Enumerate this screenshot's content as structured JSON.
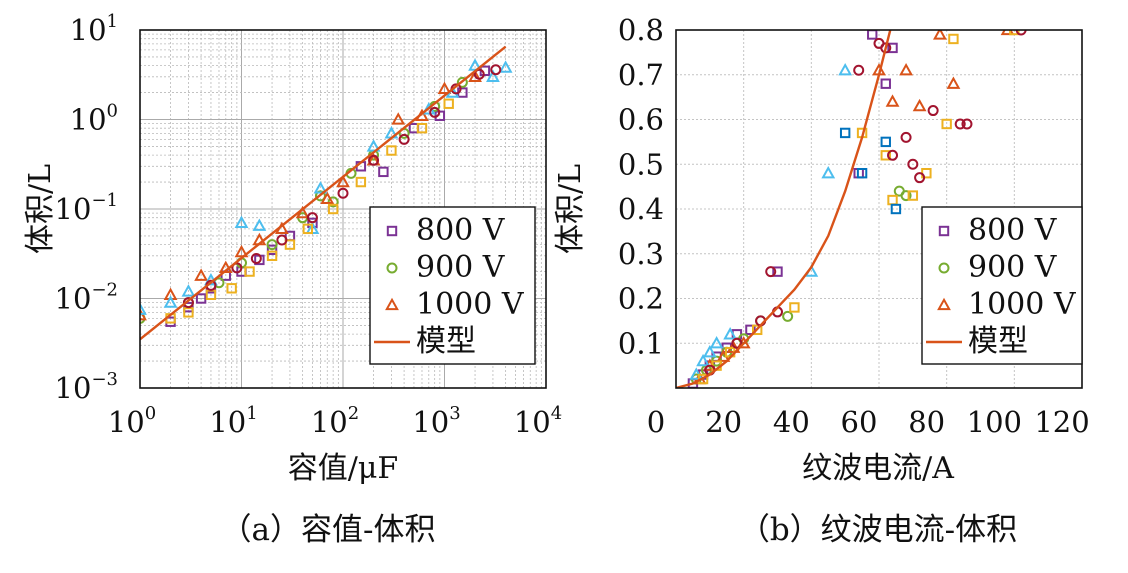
{
  "colors": {
    "s800": "#7b3294",
    "s900": "#77ac30",
    "s1000": "#d95319",
    "model": "#d95319",
    "other_blue": "#4dbeee",
    "other_yellow": "#edb120",
    "other_red": "#a2142f",
    "other_navy": "#0072bd"
  },
  "chart_data": [
    {
      "type": "scatter",
      "scale": "log-log",
      "caption": "（a）容值-体积",
      "xlabel": "容值/μF",
      "ylabel": "体积/L",
      "xlim": [
        1,
        10000
      ],
      "ylim": [
        0.001,
        10
      ],
      "xticks": [
        {
          "base": "10",
          "exp": "0"
        },
        {
          "base": "10",
          "exp": "1"
        },
        {
          "base": "10",
          "exp": "2"
        },
        {
          "base": "10",
          "exp": "3"
        },
        {
          "base": "10",
          "exp": "4"
        }
      ],
      "yticks": [
        {
          "base": "10",
          "exp": "1"
        },
        {
          "base": "10",
          "exp": "0"
        },
        {
          "base": "10",
          "exp": "−1"
        },
        {
          "base": "10",
          "exp": "−2"
        },
        {
          "base": "10",
          "exp": "−3"
        }
      ],
      "grid": true,
      "legend_position": "bottom-right",
      "legend": [
        {
          "label": "800 V",
          "marker": "square",
          "color_key": "s800"
        },
        {
          "label": "900 V",
          "marker": "circle",
          "color_key": "s900"
        },
        {
          "label": "1000 V",
          "marker": "triangle",
          "color_key": "s1000"
        },
        {
          "label": "模型",
          "marker": "line",
          "color_key": "model"
        }
      ],
      "model": {
        "x": [
          1,
          4000
        ],
        "y": [
          0.0035,
          6.5
        ]
      },
      "series": [
        {
          "legend_label": "800 V",
          "marker": "square",
          "color_key": "s800",
          "x": [
            2,
            3,
            4,
            5,
            7,
            10,
            15,
            20,
            30,
            50,
            150,
            250,
            500,
            900,
            1500,
            2500
          ],
          "y": [
            0.0055,
            0.008,
            0.01,
            0.013,
            0.018,
            0.02,
            0.027,
            0.035,
            0.05,
            0.07,
            0.3,
            0.26,
            0.8,
            1.1,
            2.0,
            3.5
          ]
        },
        {
          "legend_label": "900 V",
          "marker": "circle",
          "color_key": "s900",
          "x": [
            1,
            3,
            6,
            10,
            20,
            40,
            60,
            80,
            120,
            200,
            400,
            800,
            1500
          ],
          "y": [
            0.006,
            0.009,
            0.015,
            0.025,
            0.04,
            0.08,
            0.14,
            0.12,
            0.25,
            0.4,
            0.7,
            1.4,
            2.6
          ]
        },
        {
          "legend_label": "1000 V",
          "marker": "triangle",
          "color_key": "s1000",
          "x": [
            1,
            2,
            4,
            7,
            10,
            15,
            25,
            40,
            70,
            100,
            200,
            350,
            600,
            1000,
            2000
          ],
          "y": [
            0.0065,
            0.011,
            0.018,
            0.022,
            0.033,
            0.045,
            0.06,
            0.09,
            0.13,
            0.2,
            0.35,
            1.0,
            1.1,
            2.2,
            3.0
          ]
        },
        {
          "marker": "triangle",
          "color_key": "other_blue",
          "x": [
            1,
            2,
            3,
            5,
            10,
            15,
            50,
            60,
            200,
            300,
            700,
            1200,
            2000,
            3000,
            4000
          ],
          "y": [
            0.0075,
            0.009,
            0.012,
            0.016,
            0.07,
            0.065,
            0.06,
            0.17,
            0.5,
            0.7,
            1.3,
            2.0,
            4.0,
            3.0,
            3.8
          ]
        },
        {
          "marker": "square",
          "color_key": "other_yellow",
          "x": [
            2,
            3,
            5,
            8,
            12,
            20,
            30,
            45,
            80,
            150,
            300,
            600,
            1100
          ],
          "y": [
            0.006,
            0.007,
            0.011,
            0.013,
            0.02,
            0.03,
            0.04,
            0.06,
            0.1,
            0.2,
            0.45,
            0.8,
            1.5
          ]
        },
        {
          "marker": "circle",
          "color_key": "other_red",
          "x": [
            3,
            5,
            9,
            14,
            25,
            50,
            100,
            200,
            400,
            800,
            1300,
            2200,
            3200
          ],
          "y": [
            0.009,
            0.014,
            0.022,
            0.028,
            0.045,
            0.08,
            0.15,
            0.35,
            0.6,
            1.2,
            2.2,
            3.2,
            3.6
          ]
        }
      ]
    },
    {
      "type": "scatter",
      "caption": "（b）纹波电流-体积",
      "xlabel": "纹波电流/A",
      "ylabel": "体积/L",
      "xlim": [
        0,
        120
      ],
      "ylim": [
        0,
        0.8
      ],
      "xticks": [
        "0",
        "20",
        "40",
        "60",
        "80",
        "100",
        "120"
      ],
      "yticks": [
        "0.1",
        "0.2",
        "0.3",
        "0.4",
        "0.5",
        "0.6",
        "0.7",
        "0.8"
      ],
      "grid": true,
      "legend_position": "bottom-right",
      "legend": [
        {
          "label": "800 V",
          "marker": "square",
          "color_key": "s800"
        },
        {
          "label": "900 V",
          "marker": "circle",
          "color_key": "s900"
        },
        {
          "label": "1000 V",
          "marker": "triangle",
          "color_key": "s1000"
        },
        {
          "label": "模型",
          "marker": "line",
          "color_key": "model"
        }
      ],
      "model": {
        "x": [
          0,
          5,
          10,
          15,
          20,
          25,
          30,
          35,
          40,
          45,
          50,
          55,
          60,
          65
        ],
        "y": [
          0.0,
          0.01,
          0.03,
          0.06,
          0.1,
          0.14,
          0.18,
          0.22,
          0.27,
          0.34,
          0.44,
          0.56,
          0.7,
          0.85
        ]
      },
      "series": [
        {
          "legend_label": "800 V",
          "marker": "square",
          "color_key": "s800",
          "x": [
            5,
            8,
            10,
            12,
            15,
            18,
            22,
            30,
            54,
            58,
            62,
            64
          ],
          "y": [
            0.01,
            0.03,
            0.05,
            0.07,
            0.09,
            0.12,
            0.13,
            0.26,
            0.48,
            0.79,
            0.68,
            0.76
          ]
        },
        {
          "legend_label": "900 V",
          "marker": "circle",
          "color_key": "s900",
          "x": [
            6,
            9,
            12,
            15,
            18,
            20,
            25,
            33,
            66,
            68
          ],
          "y": [
            0.02,
            0.04,
            0.06,
            0.08,
            0.1,
            0.11,
            0.15,
            0.16,
            0.44,
            0.43
          ]
        },
        {
          "legend_label": "1000 V",
          "marker": "triangle",
          "color_key": "s1000",
          "x": [
            7,
            10,
            14,
            17,
            20,
            60,
            64,
            68,
            72,
            78,
            82,
            98
          ],
          "y": [
            0.02,
            0.05,
            0.07,
            0.09,
            0.1,
            0.71,
            0.64,
            0.71,
            0.63,
            0.79,
            0.68,
            0.8
          ]
        },
        {
          "marker": "triangle",
          "color_key": "other_blue",
          "x": [
            6,
            8,
            10,
            12,
            16,
            40,
            45,
            50
          ],
          "y": [
            0.03,
            0.06,
            0.08,
            0.1,
            0.12,
            0.26,
            0.48,
            0.71
          ]
        },
        {
          "marker": "square",
          "color_key": "other_yellow",
          "x": [
            8,
            12,
            16,
            24,
            35,
            55,
            62,
            64,
            70,
            74,
            80,
            82,
            100
          ],
          "y": [
            0.02,
            0.05,
            0.08,
            0.13,
            0.18,
            0.57,
            0.52,
            0.42,
            0.43,
            0.48,
            0.59,
            0.78,
            0.8
          ]
        },
        {
          "marker": "circle",
          "color_key": "other_red",
          "x": [
            10,
            18,
            25,
            28,
            30,
            54,
            60,
            62,
            64,
            68,
            70,
            72,
            76,
            84,
            86,
            102
          ],
          "y": [
            0.04,
            0.1,
            0.15,
            0.26,
            0.17,
            0.71,
            0.77,
            0.76,
            0.52,
            0.56,
            0.5,
            0.47,
            0.62,
            0.59,
            0.59,
            0.8
          ]
        },
        {
          "marker": "square",
          "color_key": "other_navy",
          "x": [
            50,
            55,
            62,
            65
          ],
          "y": [
            0.57,
            0.48,
            0.55,
            0.4
          ]
        }
      ]
    }
  ]
}
